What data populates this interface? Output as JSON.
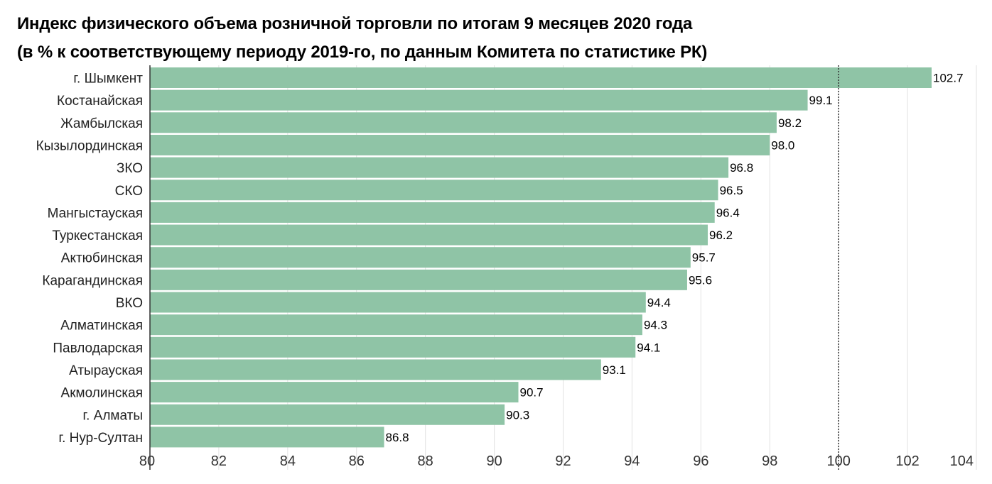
{
  "chart_data": {
    "type": "bar",
    "orientation": "horizontal",
    "title": "Индекс физического объема розничной торговли по итогам 9 месяцев 2020 года",
    "subtitle": "(в % к соответствующему периоду 2019-го, по данным Комитета по статистике РК)",
    "categories": [
      "г. Шымкент",
      "Костанайская",
      "Жамбылская",
      "Кызылординская",
      "ЗКО",
      "СКО",
      "Мангыстауская",
      "Туркестанская",
      "Актюбинская",
      "Карагандинская",
      "ВКО",
      "Алматинская",
      "Павлодарская",
      "Атырауская",
      "Акмолинская",
      "г. Алматы",
      "г. Нур-Султан"
    ],
    "values": [
      102.7,
      99.1,
      98.2,
      98.0,
      96.8,
      96.5,
      96.4,
      96.2,
      95.7,
      95.6,
      94.4,
      94.3,
      94.1,
      93.1,
      90.7,
      90.3,
      86.8
    ],
    "value_labels": [
      "102.7",
      "99.1",
      "98.2",
      "98.0",
      "96.8",
      "96.5",
      "96.4",
      "96.2",
      "95.7",
      "95.6",
      "94.4",
      "94.3",
      "94.1",
      "93.1",
      "90.7",
      "90.3",
      "86.8"
    ],
    "xlim": [
      80,
      104
    ],
    "xticks": [
      "80",
      "82",
      "84",
      "86",
      "88",
      "90",
      "92",
      "94",
      "96",
      "98",
      "100",
      "102",
      "104"
    ],
    "reference_line": 100,
    "grid": true,
    "bar_color": "#8fc4a6"
  }
}
